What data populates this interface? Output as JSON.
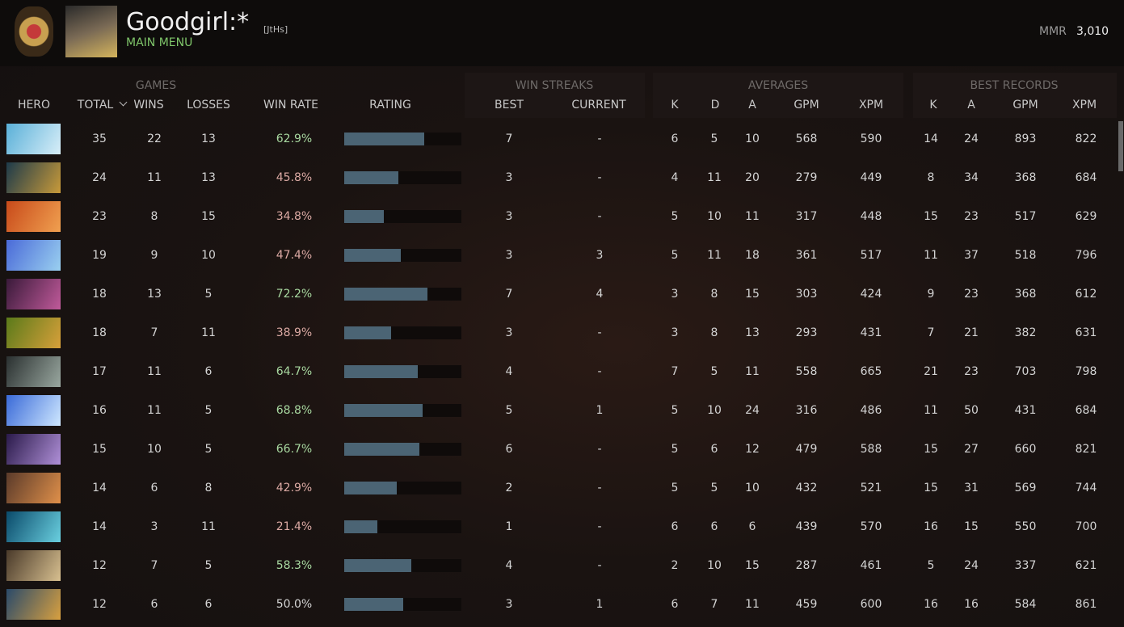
{
  "header": {
    "player_name": "Goodgirl:*",
    "tag": "[JtHs]",
    "menu": "MAIN MENU",
    "mmr_label": "MMR",
    "mmr_value": "3,010"
  },
  "table": {
    "groups": [
      "GAMES",
      "WIN STREAKS",
      "AVERAGES",
      "BEST RECORDS"
    ],
    "columns": [
      "HERO",
      "TOTAL",
      "WINS",
      "LOSSES",
      "WIN RATE",
      "RATING",
      "BEST",
      "CURRENT",
      "K",
      "D",
      "A",
      "GPM",
      "XPM",
      "K",
      "A",
      "GPM",
      "XPM"
    ],
    "rows": [
      {
        "cells": [
          35,
          22,
          13,
          "62.9%",
          7,
          "-",
          6,
          5,
          10,
          568,
          590,
          14,
          24,
          893,
          822
        ],
        "rating": 68
      },
      {
        "cells": [
          24,
          11,
          13,
          "45.8%",
          3,
          "-",
          4,
          11,
          20,
          279,
          449,
          8,
          34,
          368,
          684
        ],
        "rating": 46
      },
      {
        "cells": [
          23,
          8,
          15,
          "34.8%",
          3,
          "-",
          5,
          10,
          11,
          317,
          448,
          15,
          23,
          517,
          629
        ],
        "rating": 34
      },
      {
        "cells": [
          19,
          9,
          10,
          "47.4%",
          3,
          3,
          5,
          11,
          18,
          361,
          517,
          11,
          37,
          518,
          796
        ],
        "rating": 48
      },
      {
        "cells": [
          18,
          13,
          5,
          "72.2%",
          7,
          4,
          3,
          8,
          15,
          303,
          424,
          9,
          23,
          368,
          612
        ],
        "rating": 71
      },
      {
        "cells": [
          18,
          7,
          11,
          "38.9%",
          3,
          "-",
          3,
          8,
          13,
          293,
          431,
          7,
          21,
          382,
          631
        ],
        "rating": 40
      },
      {
        "cells": [
          17,
          11,
          6,
          "64.7%",
          4,
          "-",
          7,
          5,
          11,
          558,
          665,
          21,
          23,
          703,
          798
        ],
        "rating": 63
      },
      {
        "cells": [
          16,
          11,
          5,
          "68.8%",
          5,
          1,
          5,
          10,
          24,
          316,
          486,
          11,
          50,
          431,
          684
        ],
        "rating": 67
      },
      {
        "cells": [
          15,
          10,
          5,
          "66.7%",
          6,
          "-",
          5,
          6,
          12,
          479,
          588,
          15,
          27,
          660,
          821
        ],
        "rating": 64
      },
      {
        "cells": [
          14,
          6,
          8,
          "42.9%",
          2,
          "-",
          5,
          5,
          10,
          432,
          521,
          15,
          31,
          569,
          744
        ],
        "rating": 45
      },
      {
        "cells": [
          14,
          3,
          11,
          "21.4%",
          1,
          "-",
          6,
          6,
          6,
          439,
          570,
          16,
          15,
          550,
          700
        ],
        "rating": 28
      },
      {
        "cells": [
          12,
          7,
          5,
          "58.3%",
          4,
          "-",
          2,
          10,
          15,
          287,
          461,
          5,
          24,
          337,
          621
        ],
        "rating": 57
      },
      {
        "cells": [
          12,
          6,
          6,
          "50.0%",
          3,
          1,
          6,
          7,
          11,
          459,
          600,
          16,
          16,
          584,
          861
        ],
        "rating": 50
      }
    ]
  }
}
